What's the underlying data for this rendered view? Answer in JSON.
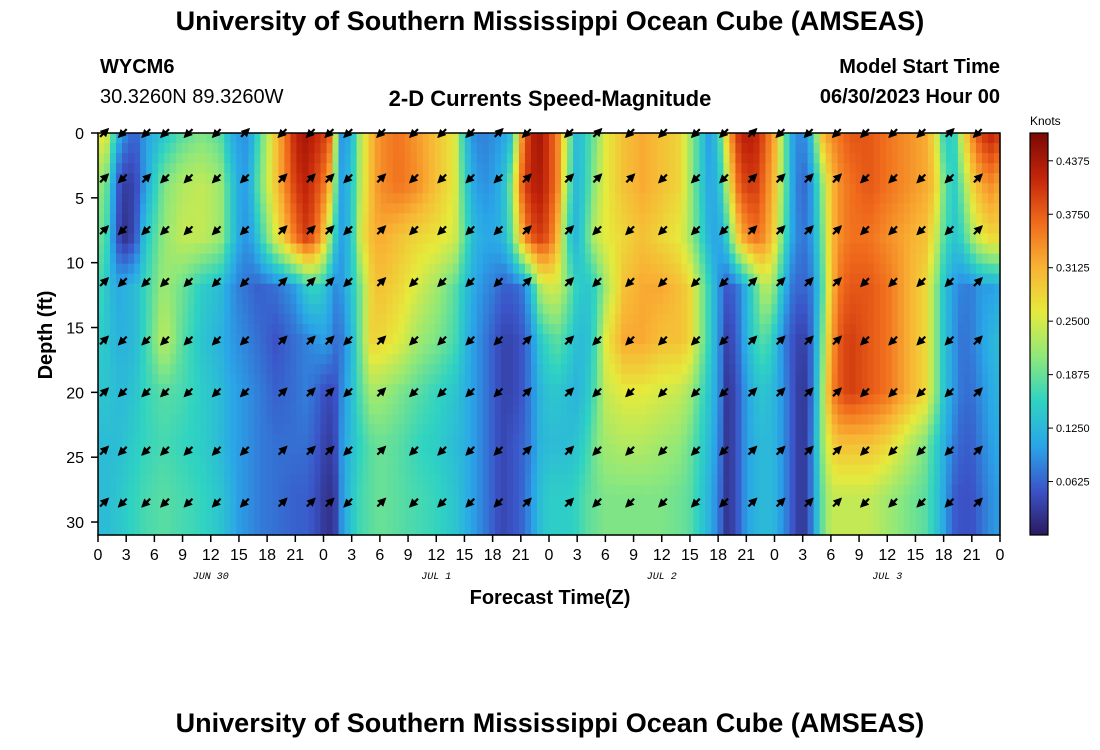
{
  "header": {
    "title": "University of Southern Mississippi Ocean Cube (AMSEAS)",
    "station_id": "WYCM6",
    "coordinates": "30.3260N  89.3260W",
    "chart_title": "2-D Currents Speed-Magnitude",
    "model_start_label": "Model Start Time",
    "model_start_value": "06/30/2023 Hour 00"
  },
  "footer": {
    "title": "University of Southern Mississippi Ocean Cube (AMSEAS)"
  },
  "chart_data": {
    "type": "heatmap",
    "title": "2-D Currents Speed-Magnitude",
    "xlabel": "Forecast Time(Z)",
    "ylabel": "Depth (ft)",
    "xlim": [
      0,
      96
    ],
    "ylim": [
      0,
      31
    ],
    "y_inverted": true,
    "x_ticks": [
      0,
      3,
      6,
      9,
      12,
      15,
      18,
      21,
      24,
      27,
      30,
      33,
      36,
      39,
      42,
      45,
      48,
      51,
      54,
      57,
      60,
      63,
      66,
      69,
      72,
      75,
      78,
      81,
      84,
      87,
      90,
      93,
      96
    ],
    "x_tick_labels": [
      "0",
      "3",
      "6",
      "9",
      "12",
      "15",
      "18",
      "21",
      "0",
      "3",
      "6",
      "9",
      "12",
      "15",
      "18",
      "21",
      "0",
      "3",
      "6",
      "9",
      "12",
      "15",
      "18",
      "21",
      "0",
      "3",
      "6",
      "9",
      "12",
      "15",
      "18",
      "21",
      "0"
    ],
    "y_ticks": [
      0,
      5,
      10,
      15,
      20,
      25,
      30
    ],
    "y_tick_labels": [
      "0",
      "5",
      "10",
      "15",
      "20",
      "25",
      "30"
    ],
    "date_labels": [
      {
        "x": 12,
        "label": "JUN 30"
      },
      {
        "x": 36,
        "label": "JUL 1"
      },
      {
        "x": 60,
        "label": "JUL 2"
      },
      {
        "x": 84,
        "label": "JUL 3"
      }
    ],
    "colorbar": {
      "label": "Knots",
      "min": 0,
      "max": 0.47,
      "ticks": [
        0.0625,
        0.125,
        0.1875,
        0.25,
        0.3125,
        0.375,
        0.4375
      ],
      "tick_labels": [
        "0.0625",
        "0.1250",
        "0.1875",
        "0.2500",
        "0.3125",
        "0.3750",
        "0.4375"
      ],
      "colors": [
        "#2a1a5e",
        "#3b54c8",
        "#2aa5e8",
        "#2fd3c2",
        "#8fe87a",
        "#e6ea3c",
        "#f9b234",
        "#f06a1c",
        "#c3240a",
        "#7a0a04"
      ]
    },
    "x_nodes": [
      0,
      1,
      2,
      3,
      4,
      5,
      7,
      9,
      11,
      13,
      14,
      15,
      16,
      17,
      19,
      21,
      22,
      23,
      24,
      25,
      25.5,
      26,
      27,
      28,
      29,
      30,
      32,
      34,
      36,
      38,
      39,
      40,
      41,
      42,
      43,
      44,
      45,
      46,
      47,
      48,
      49,
      50,
      51,
      52,
      53,
      54,
      56,
      58,
      60,
      62,
      63,
      64,
      65,
      66,
      67,
      68,
      69,
      70,
      71,
      72,
      73,
      74,
      75,
      76,
      77,
      78,
      79,
      80,
      82,
      84,
      86,
      88,
      89,
      90,
      91,
      92,
      93,
      94,
      95,
      96
    ],
    "x_nodes_note": "Forecast hours from 00Z Jun 30; values below are current speed (knots) at each depth row and x node",
    "depths": [
      0,
      4,
      8,
      12,
      16,
      20,
      24,
      28,
      31
    ],
    "speed": [
      [
        0.27,
        0.25,
        0.13,
        0.08,
        0.06,
        0.1,
        0.14,
        0.18,
        0.2,
        0.18,
        0.12,
        0.1,
        0.09,
        0.16,
        0.3,
        0.42,
        0.44,
        0.42,
        0.4,
        0.36,
        0.14,
        0.09,
        0.12,
        0.24,
        0.3,
        0.34,
        0.36,
        0.33,
        0.3,
        0.26,
        0.14,
        0.09,
        0.08,
        0.09,
        0.1,
        0.13,
        0.32,
        0.42,
        0.44,
        0.4,
        0.34,
        0.22,
        0.12,
        0.16,
        0.2,
        0.26,
        0.3,
        0.32,
        0.3,
        0.28,
        0.22,
        0.16,
        0.1,
        0.14,
        0.3,
        0.4,
        0.43,
        0.42,
        0.38,
        0.32,
        0.2,
        0.1,
        0.08,
        0.14,
        0.3,
        0.34,
        0.36,
        0.38,
        0.38,
        0.36,
        0.34,
        0.32,
        0.28,
        0.16,
        0.14,
        0.26,
        0.34,
        0.4,
        0.42,
        0.4
      ],
      [
        0.22,
        0.18,
        0.06,
        0.03,
        0.04,
        0.1,
        0.2,
        0.23,
        0.24,
        0.22,
        0.16,
        0.11,
        0.1,
        0.18,
        0.3,
        0.4,
        0.42,
        0.4,
        0.36,
        0.28,
        0.13,
        0.1,
        0.14,
        0.24,
        0.3,
        0.34,
        0.36,
        0.34,
        0.3,
        0.26,
        0.16,
        0.11,
        0.09,
        0.1,
        0.12,
        0.2,
        0.36,
        0.42,
        0.43,
        0.4,
        0.34,
        0.2,
        0.12,
        0.16,
        0.22,
        0.26,
        0.3,
        0.32,
        0.3,
        0.28,
        0.22,
        0.16,
        0.11,
        0.12,
        0.24,
        0.36,
        0.4,
        0.4,
        0.36,
        0.3,
        0.2,
        0.1,
        0.06,
        0.1,
        0.2,
        0.3,
        0.34,
        0.36,
        0.38,
        0.36,
        0.34,
        0.32,
        0.3,
        0.2,
        0.14,
        0.2,
        0.28,
        0.32,
        0.34,
        0.32
      ],
      [
        0.2,
        0.16,
        0.05,
        0.02,
        0.05,
        0.14,
        0.21,
        0.24,
        0.24,
        0.22,
        0.16,
        0.11,
        0.09,
        0.14,
        0.26,
        0.36,
        0.4,
        0.38,
        0.3,
        0.18,
        0.12,
        0.1,
        0.14,
        0.26,
        0.3,
        0.32,
        0.3,
        0.28,
        0.27,
        0.25,
        0.18,
        0.13,
        0.11,
        0.11,
        0.12,
        0.18,
        0.3,
        0.38,
        0.4,
        0.38,
        0.3,
        0.16,
        0.12,
        0.18,
        0.24,
        0.26,
        0.28,
        0.3,
        0.28,
        0.26,
        0.22,
        0.17,
        0.12,
        0.1,
        0.16,
        0.28,
        0.34,
        0.36,
        0.34,
        0.28,
        0.18,
        0.1,
        0.07,
        0.1,
        0.18,
        0.3,
        0.34,
        0.36,
        0.36,
        0.34,
        0.32,
        0.3,
        0.26,
        0.18,
        0.14,
        0.16,
        0.22,
        0.26,
        0.28,
        0.28
      ],
      [
        0.17,
        0.14,
        0.11,
        0.12,
        0.13,
        0.16,
        0.22,
        0.19,
        0.15,
        0.13,
        0.1,
        0.08,
        0.07,
        0.06,
        0.07,
        0.1,
        0.14,
        0.16,
        0.14,
        0.1,
        0.08,
        0.1,
        0.14,
        0.2,
        0.28,
        0.3,
        0.28,
        0.25,
        0.22,
        0.18,
        0.14,
        0.11,
        0.09,
        0.08,
        0.06,
        0.06,
        0.07,
        0.12,
        0.22,
        0.25,
        0.24,
        0.2,
        0.15,
        0.14,
        0.16,
        0.22,
        0.3,
        0.32,
        0.32,
        0.3,
        0.28,
        0.22,
        0.16,
        0.1,
        0.05,
        0.07,
        0.12,
        0.18,
        0.24,
        0.2,
        0.12,
        0.07,
        0.06,
        0.08,
        0.16,
        0.3,
        0.36,
        0.38,
        0.38,
        0.36,
        0.32,
        0.28,
        0.22,
        0.14,
        0.1,
        0.08,
        0.08,
        0.1,
        0.1,
        0.11
      ],
      [
        0.15,
        0.14,
        0.12,
        0.12,
        0.13,
        0.16,
        0.24,
        0.18,
        0.14,
        0.12,
        0.1,
        0.09,
        0.08,
        0.07,
        0.05,
        0.07,
        0.08,
        0.09,
        0.1,
        0.09,
        0.06,
        0.08,
        0.12,
        0.2,
        0.28,
        0.28,
        0.26,
        0.22,
        0.2,
        0.17,
        0.13,
        0.1,
        0.08,
        0.06,
        0.04,
        0.04,
        0.05,
        0.08,
        0.14,
        0.17,
        0.18,
        0.16,
        0.13,
        0.13,
        0.17,
        0.26,
        0.32,
        0.32,
        0.3,
        0.3,
        0.28,
        0.22,
        0.16,
        0.1,
        0.03,
        0.06,
        0.12,
        0.16,
        0.18,
        0.14,
        0.08,
        0.05,
        0.03,
        0.07,
        0.18,
        0.32,
        0.38,
        0.4,
        0.38,
        0.36,
        0.32,
        0.28,
        0.22,
        0.14,
        0.1,
        0.07,
        0.08,
        0.1,
        0.12,
        0.13
      ],
      [
        0.14,
        0.14,
        0.13,
        0.13,
        0.14,
        0.16,
        0.18,
        0.17,
        0.15,
        0.13,
        0.11,
        0.1,
        0.09,
        0.08,
        0.06,
        0.07,
        0.08,
        0.07,
        0.05,
        0.04,
        0.06,
        0.09,
        0.13,
        0.18,
        0.22,
        0.22,
        0.2,
        0.18,
        0.16,
        0.14,
        0.12,
        0.1,
        0.08,
        0.06,
        0.04,
        0.04,
        0.05,
        0.08,
        0.12,
        0.14,
        0.14,
        0.13,
        0.12,
        0.14,
        0.18,
        0.24,
        0.26,
        0.26,
        0.25,
        0.24,
        0.22,
        0.18,
        0.14,
        0.1,
        0.02,
        0.05,
        0.1,
        0.13,
        0.14,
        0.12,
        0.09,
        0.05,
        0.02,
        0.07,
        0.2,
        0.34,
        0.38,
        0.4,
        0.38,
        0.36,
        0.32,
        0.28,
        0.22,
        0.14,
        0.1,
        0.07,
        0.07,
        0.09,
        0.11,
        0.12
      ],
      [
        0.13,
        0.13,
        0.13,
        0.14,
        0.15,
        0.16,
        0.17,
        0.16,
        0.15,
        0.13,
        0.11,
        0.1,
        0.09,
        0.08,
        0.07,
        0.07,
        0.07,
        0.06,
        0.04,
        0.03,
        0.06,
        0.1,
        0.13,
        0.16,
        0.18,
        0.19,
        0.18,
        0.16,
        0.15,
        0.13,
        0.12,
        0.1,
        0.08,
        0.06,
        0.04,
        0.05,
        0.06,
        0.08,
        0.12,
        0.13,
        0.13,
        0.13,
        0.14,
        0.16,
        0.2,
        0.22,
        0.23,
        0.23,
        0.22,
        0.21,
        0.19,
        0.16,
        0.13,
        0.09,
        0.02,
        0.05,
        0.1,
        0.12,
        0.13,
        0.12,
        0.09,
        0.05,
        0.02,
        0.08,
        0.2,
        0.28,
        0.3,
        0.3,
        0.3,
        0.28,
        0.24,
        0.2,
        0.16,
        0.12,
        0.08,
        0.06,
        0.06,
        0.08,
        0.1,
        0.11
      ],
      [
        0.13,
        0.13,
        0.14,
        0.15,
        0.16,
        0.17,
        0.18,
        0.17,
        0.16,
        0.14,
        0.12,
        0.1,
        0.09,
        0.08,
        0.07,
        0.06,
        0.06,
        0.05,
        0.03,
        0.02,
        0.05,
        0.1,
        0.14,
        0.17,
        0.18,
        0.19,
        0.18,
        0.17,
        0.16,
        0.14,
        0.12,
        0.1,
        0.08,
        0.06,
        0.04,
        0.05,
        0.06,
        0.09,
        0.13,
        0.15,
        0.15,
        0.15,
        0.16,
        0.18,
        0.19,
        0.2,
        0.2,
        0.2,
        0.2,
        0.19,
        0.18,
        0.15,
        0.12,
        0.08,
        0.02,
        0.05,
        0.1,
        0.12,
        0.13,
        0.12,
        0.09,
        0.05,
        0.02,
        0.08,
        0.18,
        0.24,
        0.24,
        0.24,
        0.24,
        0.22,
        0.2,
        0.18,
        0.15,
        0.11,
        0.06,
        0.05,
        0.05,
        0.07,
        0.09,
        0.1
      ],
      [
        0.13,
        0.13,
        0.14,
        0.15,
        0.16,
        0.17,
        0.18,
        0.17,
        0.16,
        0.14,
        0.12,
        0.1,
        0.09,
        0.08,
        0.07,
        0.06,
        0.06,
        0.05,
        0.03,
        0.02,
        0.05,
        0.1,
        0.14,
        0.17,
        0.18,
        0.19,
        0.18,
        0.17,
        0.16,
        0.14,
        0.12,
        0.1,
        0.08,
        0.06,
        0.04,
        0.05,
        0.06,
        0.09,
        0.13,
        0.15,
        0.15,
        0.15,
        0.16,
        0.18,
        0.19,
        0.2,
        0.2,
        0.2,
        0.2,
        0.19,
        0.18,
        0.15,
        0.12,
        0.08,
        0.02,
        0.05,
        0.1,
        0.12,
        0.13,
        0.12,
        0.09,
        0.05,
        0.02,
        0.08,
        0.18,
        0.24,
        0.24,
        0.24,
        0.24,
        0.22,
        0.2,
        0.18,
        0.15,
        0.11,
        0.06,
        0.05,
        0.05,
        0.07,
        0.09,
        0.1
      ]
    ],
    "vectors": {
      "depths": [
        0,
        3.5,
        7.5,
        11.5,
        16,
        20,
        24.5,
        28.5
      ],
      "x_hours": [
        0,
        2,
        4.5,
        6.5,
        9,
        12,
        15,
        19,
        22,
        24,
        26,
        29.5,
        33,
        36,
        39,
        42,
        45,
        49.5,
        52.5,
        56,
        59.5,
        63,
        66,
        69,
        72,
        75,
        78,
        81,
        84,
        87,
        90,
        93
      ],
      "directions_deg": [
        [
          45,
          225,
          225,
          225,
          225,
          225,
          45,
          225,
          225,
          225,
          225,
          225,
          225,
          225,
          225,
          45,
          225,
          225,
          45,
          225,
          225,
          225,
          225,
          45,
          225,
          225,
          225,
          225,
          225,
          225,
          45,
          225
        ],
        [
          45,
          225,
          45,
          225,
          225,
          225,
          225,
          45,
          45,
          45,
          225,
          45,
          225,
          225,
          225,
          225,
          45,
          45,
          45,
          45,
          225,
          225,
          225,
          45,
          45,
          45,
          45,
          225,
          225,
          225,
          225,
          45
        ],
        [
          45,
          225,
          225,
          225,
          225,
          225,
          225,
          45,
          45,
          45,
          225,
          45,
          225,
          225,
          225,
          225,
          45,
          45,
          225,
          225,
          225,
          225,
          225,
          45,
          45,
          45,
          45,
          225,
          225,
          225,
          225,
          45
        ],
        [
          45,
          225,
          225,
          225,
          225,
          225,
          225,
          45,
          45,
          45,
          225,
          45,
          225,
          225,
          225,
          225,
          45,
          45,
          225,
          225,
          225,
          225,
          225,
          45,
          45,
          45,
          45,
          225,
          225,
          225,
          225,
          45
        ],
        [
          45,
          225,
          225,
          225,
          225,
          225,
          225,
          45,
          45,
          45,
          225,
          45,
          225,
          225,
          225,
          225,
          45,
          45,
          225,
          225,
          225,
          225,
          225,
          45,
          45,
          45,
          45,
          225,
          225,
          225,
          225,
          45
        ],
        [
          45,
          225,
          225,
          225,
          225,
          225,
          225,
          45,
          45,
          45,
          225,
          45,
          225,
          225,
          225,
          225,
          45,
          45,
          225,
          225,
          225,
          225,
          225,
          45,
          45,
          45,
          45,
          225,
          225,
          225,
          225,
          45
        ],
        [
          45,
          225,
          225,
          225,
          225,
          225,
          225,
          45,
          45,
          45,
          225,
          45,
          225,
          225,
          225,
          225,
          45,
          45,
          225,
          225,
          225,
          225,
          225,
          45,
          45,
          45,
          45,
          225,
          225,
          225,
          225,
          45
        ],
        [
          45,
          225,
          225,
          225,
          225,
          225,
          225,
          45,
          45,
          45,
          225,
          45,
          225,
          225,
          225,
          225,
          45,
          45,
          225,
          225,
          225,
          225,
          225,
          45,
          45,
          45,
          45,
          225,
          225,
          225,
          225,
          45
        ]
      ]
    }
  }
}
